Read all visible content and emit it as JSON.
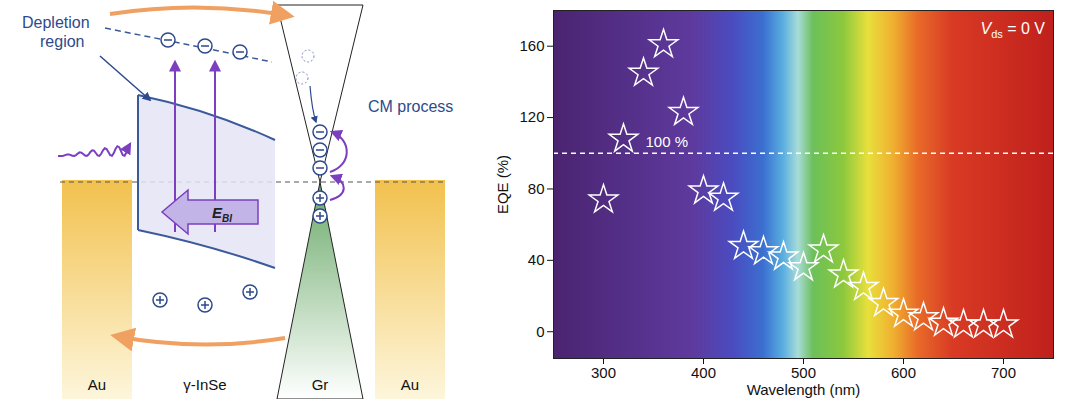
{
  "diagram": {
    "labels": {
      "depletion_region": [
        "Depletion",
        "region"
      ],
      "cm_process": "CM process",
      "field": {
        "main": "E",
        "sub": "BI"
      },
      "layers": [
        "Au",
        "γ-InSe",
        "Gr",
        "Au"
      ]
    }
  },
  "chart_data": {
    "type": "scatter",
    "x_label": "Wavelength (nm)",
    "y_label": "EQE (%)",
    "x": [
      300,
      320,
      340,
      360,
      380,
      400,
      420,
      440,
      460,
      480,
      500,
      520,
      540,
      560,
      580,
      600,
      620,
      640,
      660,
      680,
      700
    ],
    "values": [
      74,
      108,
      145,
      161,
      123,
      79,
      75,
      48,
      45,
      42,
      36,
      46,
      32,
      25,
      16,
      10,
      8,
      5,
      4,
      4,
      4
    ],
    "color": "#ffffff",
    "marker": "star",
    "xlim": [
      250,
      750
    ],
    "xticks": [
      300,
      400,
      500,
      600,
      700
    ],
    "ylim": [
      -15,
      180
    ],
    "yticks": [
      0,
      40,
      80,
      120,
      160
    ],
    "reference_line": {
      "value": 100,
      "label": "100 %",
      "line_style": "dashed"
    },
    "annotation": {
      "main": "V",
      "sub": "ds",
      "rest": " = 0 V"
    }
  }
}
